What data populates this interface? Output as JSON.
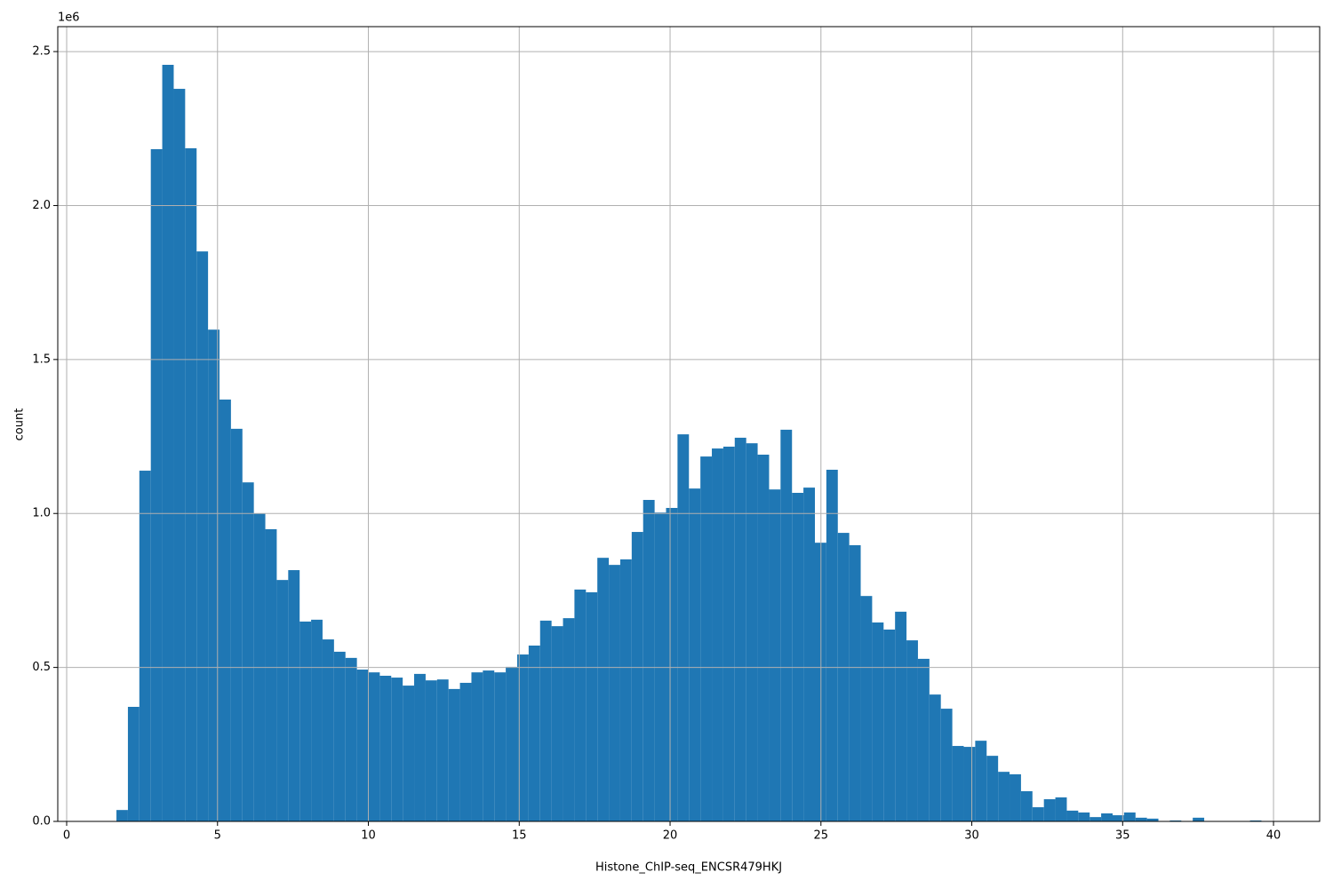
{
  "chart_data": {
    "type": "histogram",
    "x_label": "Histone_ChIP-seq_ENCSR479HKJ",
    "y_label": "count",
    "y_offset_label": "1e6",
    "color": "#1f77b4",
    "grid": true,
    "bins": [
      1.65,
      2.03,
      2.409,
      2.789,
      3.168,
      3.548,
      3.927,
      4.307,
      4.686,
      5.066,
      5.445,
      5.825,
      6.204,
      6.584,
      6.963,
      7.343,
      7.722,
      8.102,
      8.481,
      8.861,
      9.24,
      9.62,
      9.999,
      10.379,
      10.758,
      11.138,
      11.517,
      11.897,
      12.276,
      12.656,
      13.035,
      13.415,
      13.794,
      14.174,
      14.553,
      14.933,
      15.312,
      15.692,
      16.071,
      16.451,
      16.83,
      17.21,
      17.589,
      17.969,
      18.348,
      18.728,
      19.107,
      19.487,
      19.866,
      20.246,
      20.625,
      21.005,
      21.384,
      21.764,
      22.143,
      22.523,
      22.902,
      23.282,
      23.661,
      24.041,
      24.42,
      24.8,
      25.179,
      25.559,
      25.938,
      26.318,
      26.697,
      27.077,
      27.456,
      27.836,
      28.215,
      28.595,
      28.974,
      29.354,
      29.733,
      30.113,
      30.492,
      30.872,
      31.251,
      31.631,
      32.01,
      32.39,
      32.769,
      33.149,
      33.528,
      33.908,
      34.287,
      34.667,
      35.046,
      35.426,
      35.805,
      36.185,
      36.564,
      36.944,
      37.323,
      37.703,
      38.082,
      38.462,
      38.841,
      39.221,
      39.6
    ],
    "values": [
      37000,
      372000,
      1139000,
      2183000,
      2457000,
      2379000,
      2186000,
      1851000,
      1597000,
      1370000,
      1275000,
      1101000,
      1000000,
      949000,
      784000,
      816000,
      649000,
      655000,
      591000,
      551000,
      531000,
      493000,
      484000,
      473000,
      467000,
      441000,
      479000,
      458000,
      461000,
      430000,
      450000,
      484000,
      490000,
      484000,
      502000,
      542000,
      571000,
      652000,
      634000,
      660000,
      753000,
      744000,
      856000,
      833000,
      851000,
      940000,
      1044000,
      1003000,
      1018000,
      1257000,
      1081000,
      1185000,
      1211000,
      1217000,
      1246000,
      1228000,
      1191000,
      1078000,
      1272000,
      1067000,
      1084000,
      905000,
      1142000,
      937000,
      897000,
      732000,
      646000,
      623000,
      681000,
      588000,
      528000,
      412000,
      366000,
      245000,
      242000,
      262000,
      213000,
      161000,
      153000,
      98000,
      46000,
      72000,
      78000,
      35000,
      29000,
      14000,
      26000,
      20000,
      29000,
      12000,
      9000,
      0,
      3000,
      0,
      12000,
      0,
      0,
      0,
      0,
      3000
    ],
    "xlim": [
      -0.295,
      41.53
    ],
    "xticks": [
      0,
      5,
      10,
      15,
      20,
      25,
      30,
      35,
      40
    ],
    "ylim": [
      0,
      2581000
    ],
    "yticks": [
      {
        "value": 0,
        "label": "0.0"
      },
      {
        "value": 500000,
        "label": "0.5"
      },
      {
        "value": 1000000,
        "label": "1.0"
      },
      {
        "value": 1500000,
        "label": "1.5"
      },
      {
        "value": 2000000,
        "label": "2.0"
      },
      {
        "value": 2500000,
        "label": "2.5"
      }
    ]
  }
}
